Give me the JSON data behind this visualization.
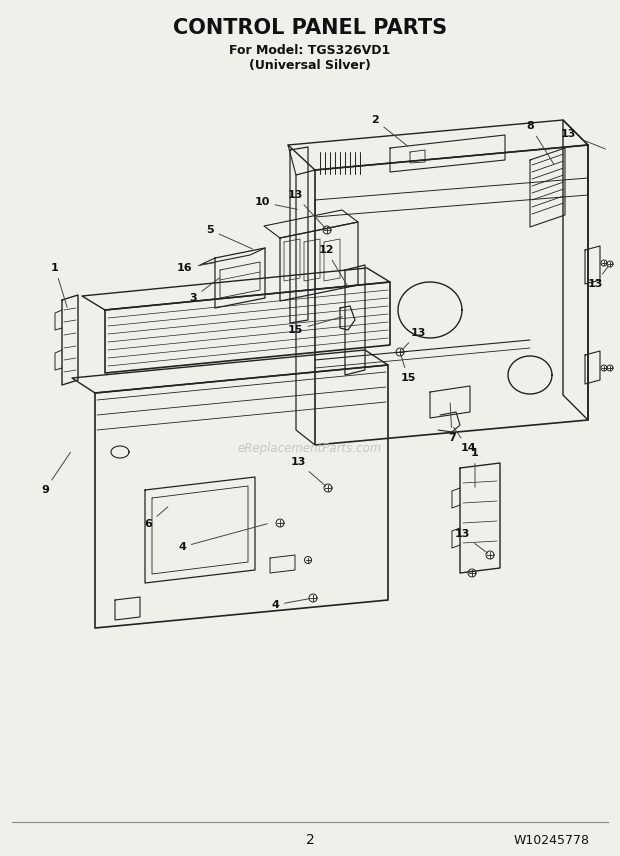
{
  "title": "CONTROL PANEL PARTS",
  "subtitle1": "For Model: TGS326VD1",
  "subtitle2": "(Universal Silver)",
  "page_number": "2",
  "doc_number": "W10245778",
  "bg_color": "#f0f0eb",
  "title_color": "#111111",
  "line_color": "#222222",
  "watermark": "eReplacementParts.com",
  "figsize": [
    6.2,
    8.56
  ],
  "dpi": 100
}
